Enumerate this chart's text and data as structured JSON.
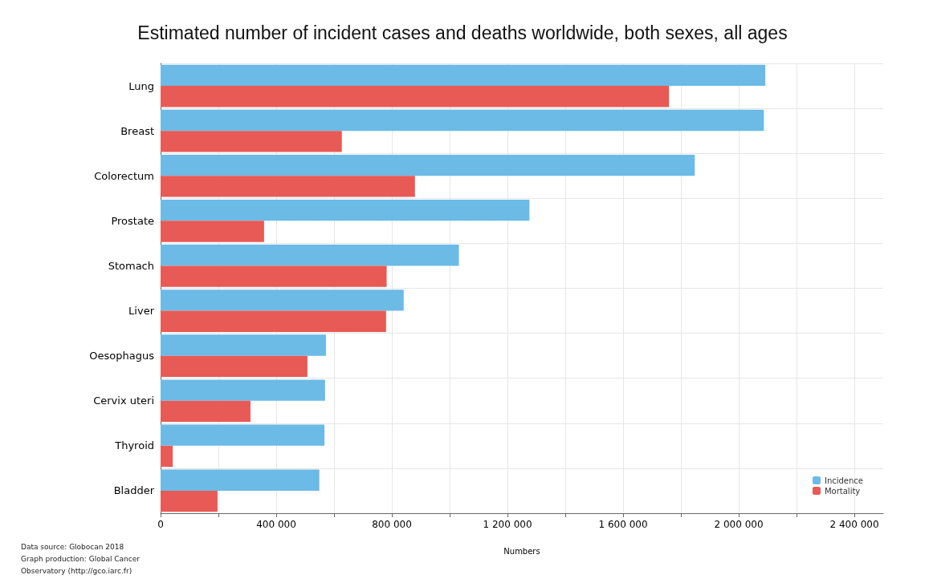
{
  "chart_data": {
    "type": "bar",
    "orientation": "horizontal",
    "title": "Estimated number of incident cases and deaths worldwide, both sexes, all ages",
    "xlabel": "Numbers",
    "categories": [
      "Lung",
      "Breast",
      "Colorectum",
      "Prostate",
      "Stomach",
      "Liver",
      "Oesophagus",
      "Cervix uteri",
      "Thyroid",
      "Bladder"
    ],
    "series": [
      {
        "name": "Incidence",
        "color": "#6cbae6",
        "values": [
          2092000,
          2087000,
          1848000,
          1276000,
          1032000,
          841000,
          572000,
          569000,
          567000,
          549000
        ]
      },
      {
        "name": "Mortality",
        "color": "#e85a55",
        "values": [
          1759000,
          627000,
          880000,
          358000,
          782000,
          780000,
          508000,
          311000,
          42000,
          197000
        ]
      }
    ],
    "xlim": [
      0,
      2500000
    ],
    "xticks": [
      0,
      {
        "value": 200000,
        "label": null
      },
      {
        "value": 400000,
        "label": "400 000"
      },
      {
        "value": 600000,
        "label": null
      },
      {
        "value": 800000,
        "label": "800 000"
      },
      {
        "value": 1000000,
        "label": null
      },
      {
        "value": 1200000,
        "label": "1 200 000"
      },
      {
        "value": 1400000,
        "label": null
      },
      {
        "value": 1600000,
        "label": "1 600 000"
      },
      {
        "value": 1800000,
        "label": null
      },
      {
        "value": 2000000,
        "label": "2 000 000"
      },
      {
        "value": 2200000,
        "label": null
      },
      {
        "value": 2400000,
        "label": "2 400 000"
      }
    ],
    "grid": true,
    "legend": "bottom right",
    "annotations": [
      "Data source: Globocan 2018",
      "Graph production: Global Cancer",
      "Observatory (http://gco.iarc.fr)"
    ]
  }
}
